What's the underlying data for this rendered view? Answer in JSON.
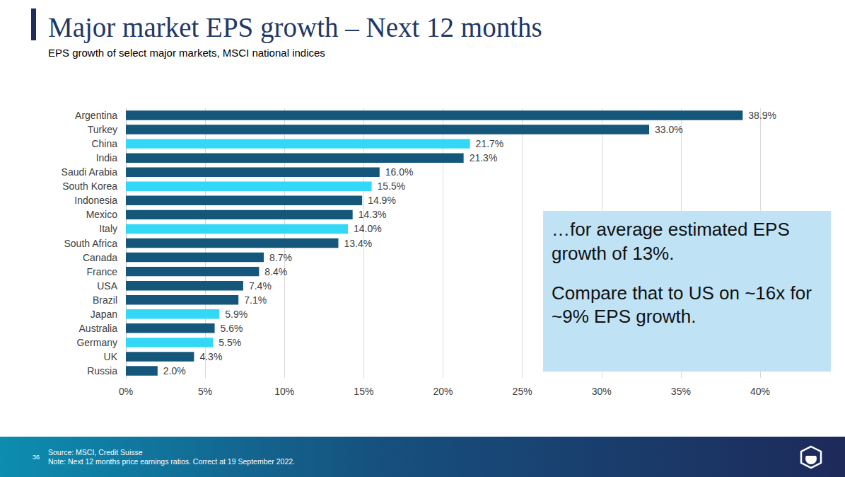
{
  "chart_data": {
    "type": "bar",
    "title": "Major market EPS growth – Next 12 months",
    "subtitle": "EPS growth of select major markets, MSCI national indices",
    "orientation": "horizontal",
    "categories": [
      "Argentina",
      "Turkey",
      "China",
      "India",
      "Saudi Arabia",
      "South Korea",
      "Indonesia",
      "Mexico",
      "Italy",
      "South Africa",
      "Canada",
      "France",
      "USA",
      "Brazil",
      "Japan",
      "Australia",
      "Germany",
      "UK",
      "Russia"
    ],
    "values": [
      38.9,
      33.0,
      21.7,
      21.3,
      16.0,
      15.5,
      14.9,
      14.3,
      14.0,
      13.4,
      8.7,
      8.4,
      7.4,
      7.1,
      5.9,
      5.6,
      5.5,
      4.3,
      2.0
    ],
    "value_labels": [
      "38.9%",
      "33.0%",
      "21.7%",
      "21.3%",
      "16.0%",
      "15.5%",
      "14.9%",
      "14.3%",
      "14.0%",
      "13.4%",
      "8.7%",
      "8.4%",
      "7.4%",
      "7.1%",
      "5.9%",
      "5.6%",
      "5.5%",
      "4.3%",
      "2.0%"
    ],
    "colors": [
      "#14577a",
      "#14577a",
      "#33d8f7",
      "#14577a",
      "#14577a",
      "#33d8f7",
      "#14577a",
      "#14577a",
      "#33d8f7",
      "#14577a",
      "#14577a",
      "#14577a",
      "#14577a",
      "#14577a",
      "#33d8f7",
      "#14577a",
      "#33d8f7",
      "#14577a",
      "#14577a"
    ],
    "xlim": [
      0,
      40
    ],
    "xticks": [
      {
        "value": 0,
        "label": "0%"
      },
      {
        "value": 5,
        "label": "5%"
      },
      {
        "value": 10,
        "label": "10%"
      },
      {
        "value": 15,
        "label": "15%"
      },
      {
        "value": 20,
        "label": "20%"
      },
      {
        "value": 25,
        "label": "25%"
      },
      {
        "value": 30,
        "label": "30%"
      },
      {
        "value": 35,
        "label": "35%"
      },
      {
        "value": 40,
        "label": "40%"
      }
    ],
    "grid": true,
    "data_labels": true,
    "annotations": [
      "…for average estimated EPS growth of 13%.",
      "Compare that to US on ~16x for ~9% EPS growth."
    ]
  },
  "footer": {
    "page": "36",
    "source": "Source: MSCI, Credit Suisse",
    "note": "Note: Next 12 months price earnings ratios. Correct at 19 September 2022."
  }
}
